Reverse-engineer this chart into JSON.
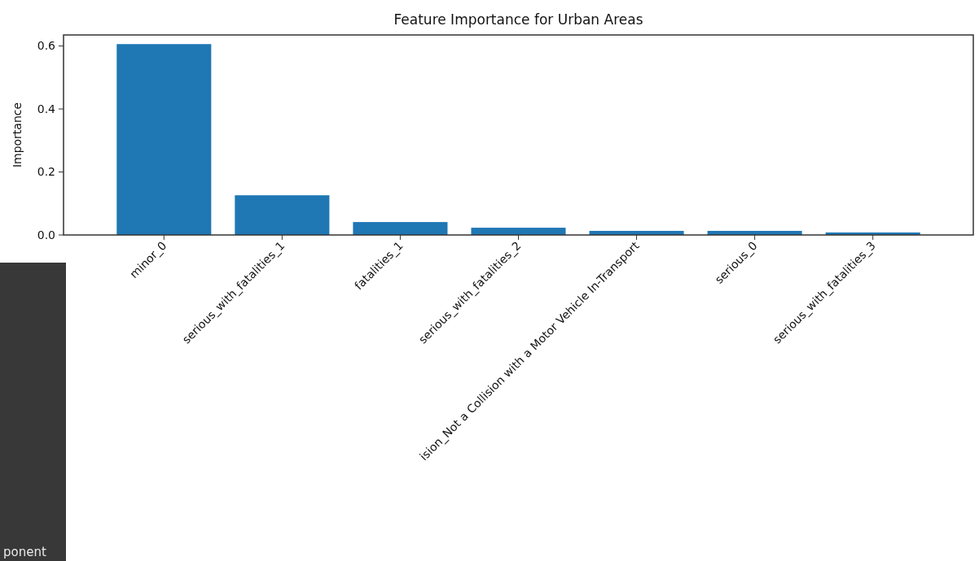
{
  "chart_data": {
    "type": "bar",
    "title": "Feature Importance for Urban Areas",
    "ylabel": "Importance",
    "categories": [
      "minor_0",
      "serious_with_fatalities_1",
      "fatalities_1",
      "serious_with_fatalities_2",
      "ision_Not a Collision with a Motor Vehicle In-Transport",
      "serious_0",
      "serious_with_fatalities_3"
    ],
    "values": [
      0.606,
      0.126,
      0.041,
      0.023,
      0.013,
      0.013,
      0.008
    ],
    "color": "#1f77b4",
    "ylim": [
      0,
      0.635
    ],
    "yticks": [
      {
        "value": 0,
        "label": "0.0"
      },
      0.2,
      0.4,
      0.6
    ],
    "grid": false,
    "annotations": [
      "ponent"
    ]
  }
}
